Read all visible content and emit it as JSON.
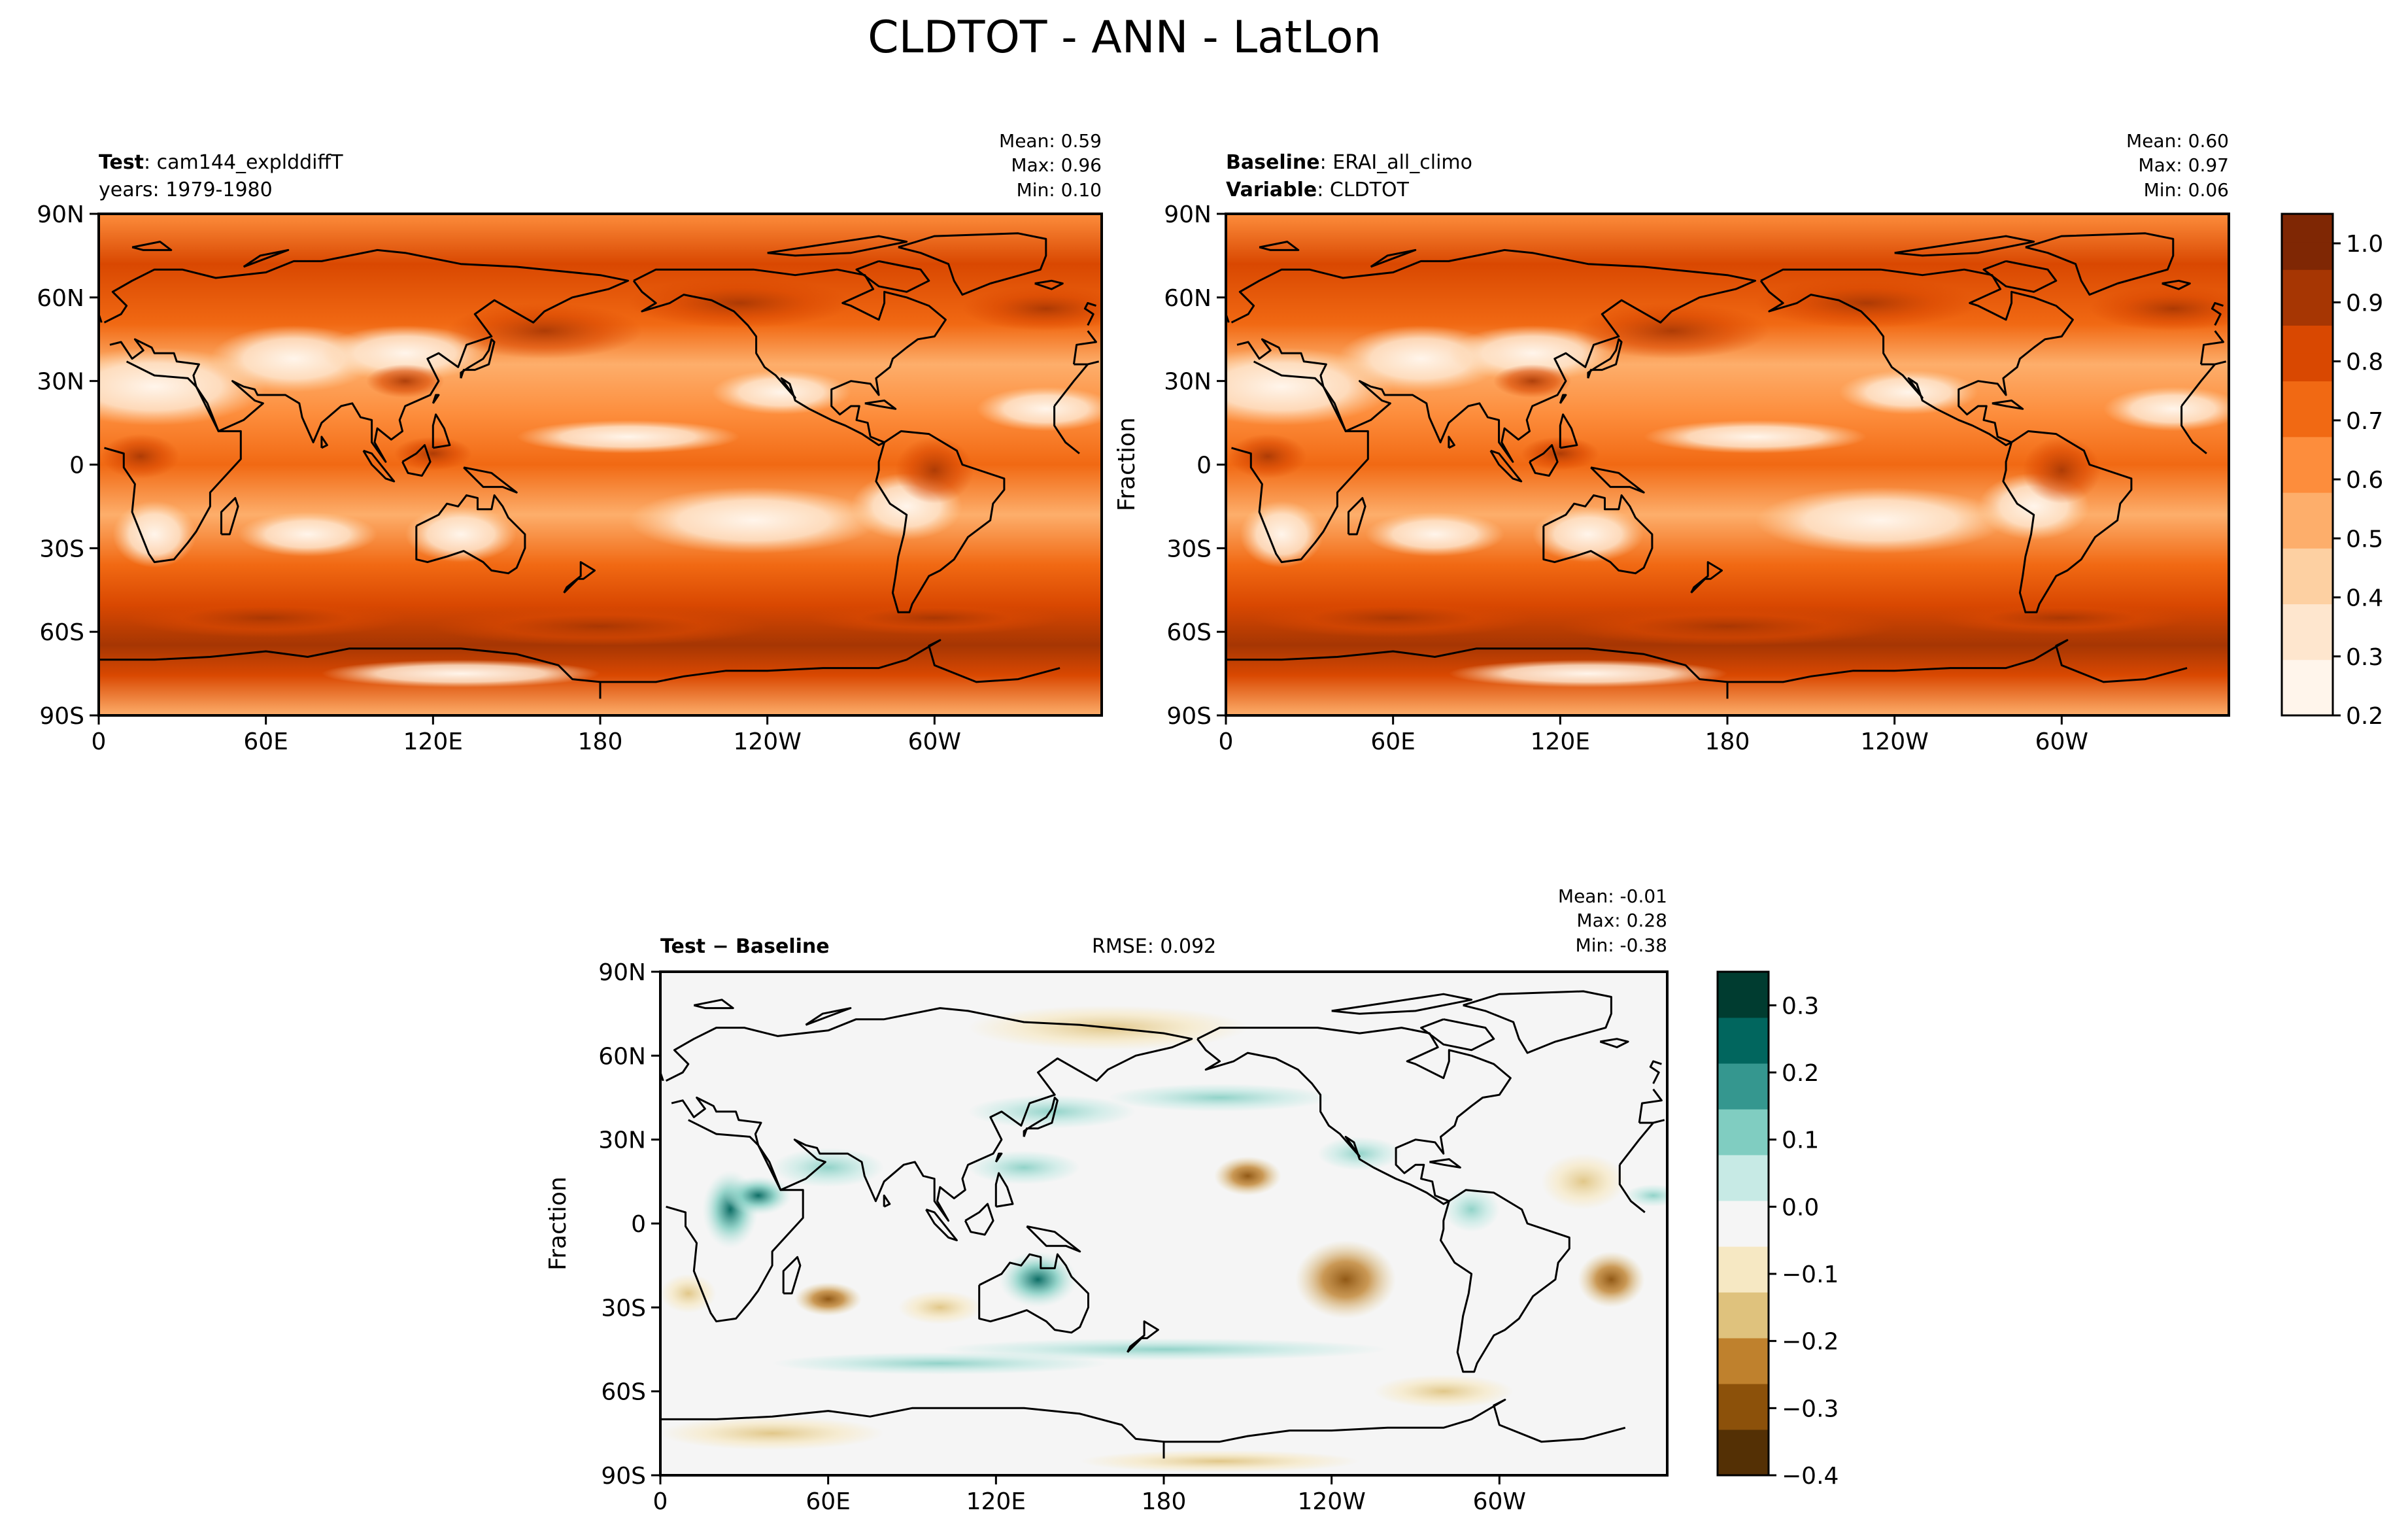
{
  "figure": {
    "suptitle": "CLDTOT - ANN - LatLon"
  },
  "colors": {
    "sequential": [
      "#fff5eb",
      "#fee6ce",
      "#fdd0a2",
      "#fdae6b",
      "#fd8d3c",
      "#f16913",
      "#d94801",
      "#a63603",
      "#7f2704"
    ],
    "diverging": [
      "#543005",
      "#8c510a",
      "#bf812d",
      "#dfc27d",
      "#f6e8c3",
      "#f5f5f5",
      "#c7eae5",
      "#80cdc1",
      "#35978f",
      "#01665e",
      "#003c30"
    ],
    "coastline": "#000000"
  },
  "icons": {
    "map_texture": "filled-contour-map",
    "coastline": "world-coastline-outline"
  },
  "chart_data": [
    {
      "type": "heatmap",
      "panel": "test",
      "title_bold": "Test",
      "title_rest": ": cam144_explddiffT",
      "subtitle": "years: 1979-1980",
      "stats": [
        "Mean:  0.59",
        "Max:  0.96",
        "Min:  0.10"
      ],
      "ylabel": "",
      "xticks": [
        "0",
        "60E",
        "120E",
        "180",
        "120W",
        "60W"
      ],
      "yticks": [
        "90N",
        "60N",
        "30N",
        "0",
        "30S",
        "60S",
        "90S"
      ],
      "xlim": [
        0,
        360
      ],
      "ylim": [
        -90,
        90
      ],
      "colormap": "sequential",
      "grid": false,
      "fields": {
        "mean": 0.59,
        "max": 0.96,
        "min": 0.1
      }
    },
    {
      "type": "heatmap",
      "panel": "baseline",
      "title_bold": "Baseline",
      "title_rest": ": ERAI_all_climo",
      "subtitle_bold": "Variable",
      "subtitle_rest": ": CLDTOT",
      "stats": [
        "Mean:  0.60",
        "Max:  0.97",
        "Min:  0.06"
      ],
      "ylabel": "Fraction",
      "xticks": [
        "0",
        "60E",
        "120E",
        "180",
        "120W",
        "60W"
      ],
      "yticks": [
        "90N",
        "60N",
        "30N",
        "0",
        "30S",
        "60S",
        "90S"
      ],
      "xlim": [
        0,
        360
      ],
      "ylim": [
        -90,
        90
      ],
      "colormap": "sequential",
      "colorbar": {
        "ticks": [
          "1.0",
          "0.9",
          "0.8",
          "0.7",
          "0.6",
          "0.5",
          "0.4",
          "0.3",
          "0.2"
        ],
        "range": [
          0.2,
          1.05
        ]
      },
      "grid": false,
      "fields": {
        "mean": 0.6,
        "max": 0.97,
        "min": 0.06
      }
    },
    {
      "type": "heatmap",
      "panel": "difference",
      "title_bold": "Test − Baseline",
      "rmse": "RMSE: 0.092",
      "stats": [
        "Mean: -0.01",
        "Max:  0.28",
        "Min: -0.38"
      ],
      "ylabel": "Fraction",
      "xticks": [
        "0",
        "60E",
        "120E",
        "180",
        "120W",
        "60W"
      ],
      "yticks": [
        "90N",
        "60N",
        "30N",
        "0",
        "30S",
        "60S",
        "90S"
      ],
      "xlim": [
        0,
        360
      ],
      "ylim": [
        -90,
        90
      ],
      "colormap": "diverging",
      "colorbar": {
        "ticks": [
          "0.3",
          "0.2",
          "0.1",
          "0.0",
          "−0.1",
          "−0.2",
          "−0.3",
          "−0.4"
        ],
        "range": [
          -0.4,
          0.35
        ]
      },
      "grid": false,
      "fields": {
        "mean": -0.01,
        "max": 0.28,
        "min": -0.38
      }
    }
  ]
}
